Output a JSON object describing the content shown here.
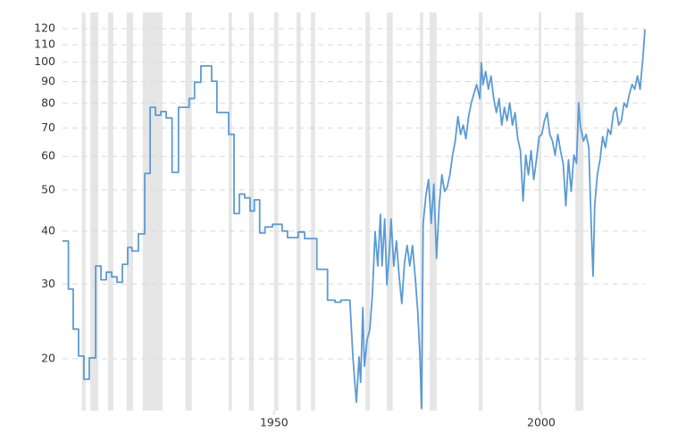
{
  "chart_data": {
    "type": "line",
    "log_scale": true,
    "grid": true,
    "xlim": [
      1910.4,
      2019.4
    ],
    "xticks": [
      1950,
      2000
    ],
    "ylim": [
      15.1,
      131
    ],
    "yticks": [
      20,
      30,
      40,
      50,
      60,
      70,
      80,
      90,
      100,
      110,
      120
    ],
    "band_color": "#e6e6e6",
    "recessions": [
      [
        1914.0,
        1914.7
      ],
      [
        1915.6,
        1917.1
      ],
      [
        1918.9,
        1919.9
      ],
      [
        1922.4,
        1923.6
      ],
      [
        1925.4,
        1929.1
      ],
      [
        1933.4,
        1934.6
      ],
      [
        1941.5,
        1942.1
      ],
      [
        1945.3,
        1946.2
      ],
      [
        1950.0,
        1950.8
      ],
      [
        1954.2,
        1955.0
      ],
      [
        1956.9,
        1957.7
      ],
      [
        1967.1,
        1967.9
      ],
      [
        1971.1,
        1972.2
      ],
      [
        1977.3,
        1977.9
      ],
      [
        1979.1,
        1980.4
      ],
      [
        1988.3,
        1989.0
      ],
      [
        1999.5,
        2000.0
      ],
      [
        2006.4,
        2007.9
      ]
    ],
    "series": [
      {
        "color": "#5b9bd5",
        "x": [
          1910.4,
          1911.5,
          1911.5,
          1912.4,
          1912.4,
          1913.4,
          1913.4,
          1914.4,
          1914.4,
          1915.4,
          1915.4,
          1916.6,
          1916.6,
          1917.6,
          1917.6,
          1918.6,
          1918.6,
          1919.6,
          1919.6,
          1920.6,
          1920.6,
          1921.6,
          1921.6,
          1922.6,
          1922.6,
          1923.4,
          1923.4,
          1924.6,
          1924.6,
          1925.8,
          1925.8,
          1926.8,
          1926.8,
          1927.8,
          1927.8,
          1928.8,
          1928.8,
          1929.8,
          1929.8,
          1930.9,
          1930.9,
          1932.1,
          1932.1,
          1934.1,
          1934.1,
          1935.1,
          1935.1,
          1936.3,
          1936.3,
          1938.3,
          1938.3,
          1939.3,
          1939.3,
          1941.5,
          1941.5,
          1942.5,
          1942.5,
          1943.5,
          1943.5,
          1944.5,
          1944.5,
          1945.5,
          1945.5,
          1946.3,
          1946.3,
          1947.3,
          1947.3,
          1948.3,
          1948.3,
          1949.7,
          1949.7,
          1951.5,
          1951.5,
          1952.5,
          1952.5,
          1954.5,
          1954.5,
          1955.7,
          1955.7,
          1958.0,
          1958.0,
          1960.0,
          1960.0,
          1961.4,
          1961.4,
          1962.5,
          1962.5,
          1964.2,
          1964.2,
          1964.7,
          1965.0,
          1965.4,
          1965.9,
          1966.2,
          1966.6,
          1966.9,
          1967.4,
          1967.9,
          1968.4,
          1968.9,
          1969.4,
          1969.9,
          1970.2,
          1970.7,
          1971.1,
          1971.6,
          1971.9,
          1972.4,
          1972.9,
          1973.4,
          1973.9,
          1974.4,
          1974.9,
          1975.4,
          1975.9,
          1976.4,
          1976.9,
          1977.3,
          1977.6,
          1977.9,
          1978.4,
          1978.9,
          1979.4,
          1979.9,
          1980.4,
          1980.9,
          1981.4,
          1981.9,
          1982.4,
          1982.9,
          1983.4,
          1983.9,
          1984.4,
          1984.9,
          1985.4,
          1985.9,
          1986.4,
          1986.9,
          1987.4,
          1987.9,
          1988.5,
          1988.8,
          1989.1,
          1989.6,
          1990.1,
          1990.6,
          1991.1,
          1991.6,
          1992.1,
          1992.6,
          1993.1,
          1993.6,
          1994.1,
          1994.6,
          1995.1,
          1995.6,
          1996.1,
          1996.6,
          1997.1,
          1997.6,
          1998.1,
          1998.6,
          1999.1,
          1999.6,
          2000.1,
          2000.6,
          2001.1,
          2001.6,
          2002.1,
          2002.6,
          2003.1,
          2003.6,
          2004.1,
          2004.6,
          2005.1,
          2005.6,
          2006.1,
          2006.6,
          2007.0,
          2007.3,
          2007.9,
          2008.4,
          2008.9,
          2009.4,
          2009.7,
          2010.0,
          2010.5,
          2011.0,
          2011.5,
          2012.0,
          2012.5,
          2013.0,
          2013.5,
          2014.0,
          2014.5,
          2015.0,
          2015.5,
          2016.0,
          2016.5,
          2017.0,
          2017.5,
          2018.0,
          2018.5,
          2019.1,
          2019.4
        ],
        "values": [
          37.9,
          37.9,
          29.2,
          29.2,
          23.5,
          23.5,
          20.3,
          20.3,
          17.9,
          17.9,
          20.1,
          20.1,
          33.1,
          33.1,
          30.7,
          30.7,
          32.0,
          32.0,
          31.2,
          31.2,
          30.3,
          30.3,
          33.4,
          33.4,
          36.6,
          36.6,
          35.9,
          35.9,
          39.4,
          39.4,
          54.7,
          54.7,
          78.3,
          78.3,
          75.0,
          75.0,
          76.5,
          76.5,
          73.9,
          73.9,
          55.0,
          55.0,
          78.3,
          78.3,
          82.1,
          82.1,
          89.7,
          89.7,
          98.0,
          98.0,
          90.2,
          90.2,
          76.1,
          76.1,
          67.6,
          67.6,
          44.0,
          44.0,
          48.9,
          48.9,
          47.9,
          47.9,
          44.6,
          44.6,
          47.4,
          47.4,
          39.6,
          39.6,
          40.9,
          40.9,
          41.5,
          41.5,
          40.0,
          40.0,
          38.6,
          38.6,
          39.8,
          39.8,
          38.4,
          38.4,
          32.5,
          32.5,
          27.5,
          27.5,
          27.2,
          27.2,
          27.5,
          27.5,
          27.2,
          20.7,
          18.3,
          15.8,
          20.2,
          17.6,
          26.4,
          19.2,
          22.2,
          23.4,
          28.4,
          39.9,
          33.1,
          43.8,
          33.1,
          42.7,
          29.9,
          36.2,
          42.7,
          33.1,
          37.9,
          31.3,
          27.0,
          33.7,
          37.0,
          33.1,
          37.0,
          31.3,
          25.7,
          20.2,
          15.3,
          41.7,
          48.4,
          52.9,
          41.7,
          51.6,
          34.5,
          46.0,
          54.3,
          49.6,
          50.8,
          54.3,
          60.4,
          65.2,
          74.5,
          67.6,
          71.1,
          66.0,
          74.5,
          80.2,
          84.3,
          88.6,
          82.1,
          99.8,
          88.6,
          95.1,
          86.4,
          92.8,
          82.1,
          76.1,
          82.1,
          71.1,
          78.3,
          72.8,
          80.2,
          71.1,
          76.1,
          66.0,
          61.9,
          47.1,
          60.4,
          54.3,
          61.9,
          52.9,
          58.9,
          66.8,
          67.6,
          72.8,
          76.1,
          67.6,
          65.2,
          60.4,
          67.6,
          61.9,
          57.8,
          45.9,
          58.9,
          49.6,
          60.4,
          57.8,
          80.2,
          71.1,
          65.2,
          67.6,
          62.9,
          39.6,
          31.3,
          46.0,
          54.3,
          58.9,
          66.8,
          62.9,
          69.5,
          67.6,
          76.1,
          78.3,
          71.1,
          72.8,
          80.2,
          78.3,
          84.3,
          88.6,
          86.4,
          92.8,
          86.4,
          105.4,
          119.5
        ]
      }
    ]
  }
}
